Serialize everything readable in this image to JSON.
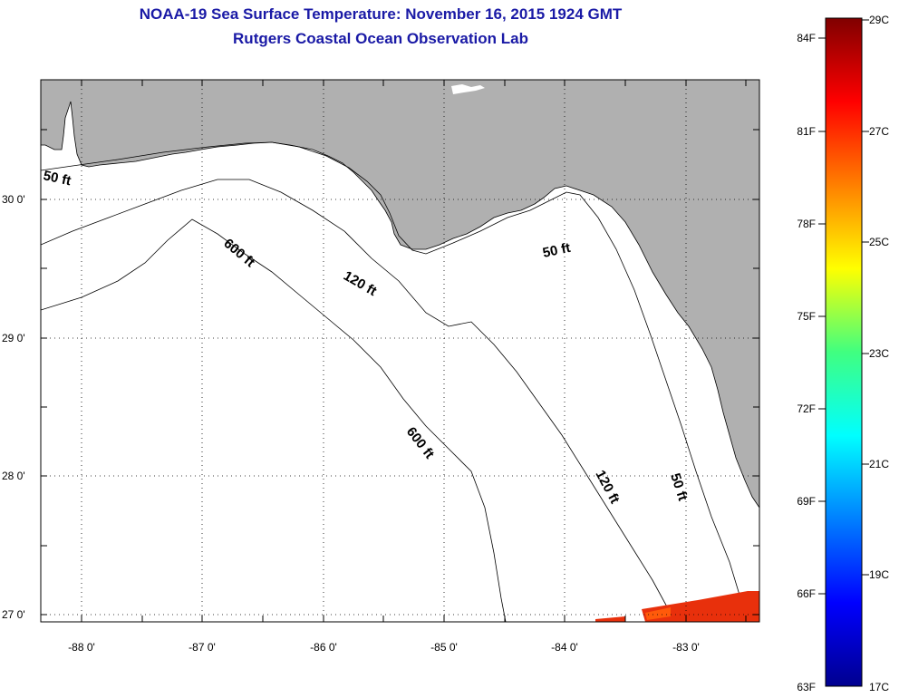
{
  "title_line1": "NOAA-19 Sea Surface Temperature:  November 16, 2015 1924 GMT",
  "title_line2": "Rutgers Coastal Ocean Observation Lab",
  "map": {
    "lat_labels": [
      "30 0'",
      "29 0'",
      "28 0'",
      "27 0'"
    ],
    "lon_labels": [
      "-88 0'",
      "-87 0'",
      "-86 0'",
      "-85 0'",
      "-84 0'",
      "-83 0'"
    ],
    "contour_labels": [
      "50 ft",
      "600 ft",
      "120 ft",
      "50 ft",
      "600 ft",
      "120 ft",
      "50 ft"
    ]
  },
  "colorbar": {
    "fahrenheit": [
      "84F",
      "81F",
      "78F",
      "75F",
      "72F",
      "69F",
      "66F",
      "63F"
    ],
    "celsius": [
      "29C",
      "27C",
      "25C",
      "23C",
      "21C",
      "19C",
      "17C"
    ]
  },
  "colors": {
    "title": "#1a1aa6",
    "land": "#b0b0b0",
    "sst_patch": "#e8300c"
  }
}
